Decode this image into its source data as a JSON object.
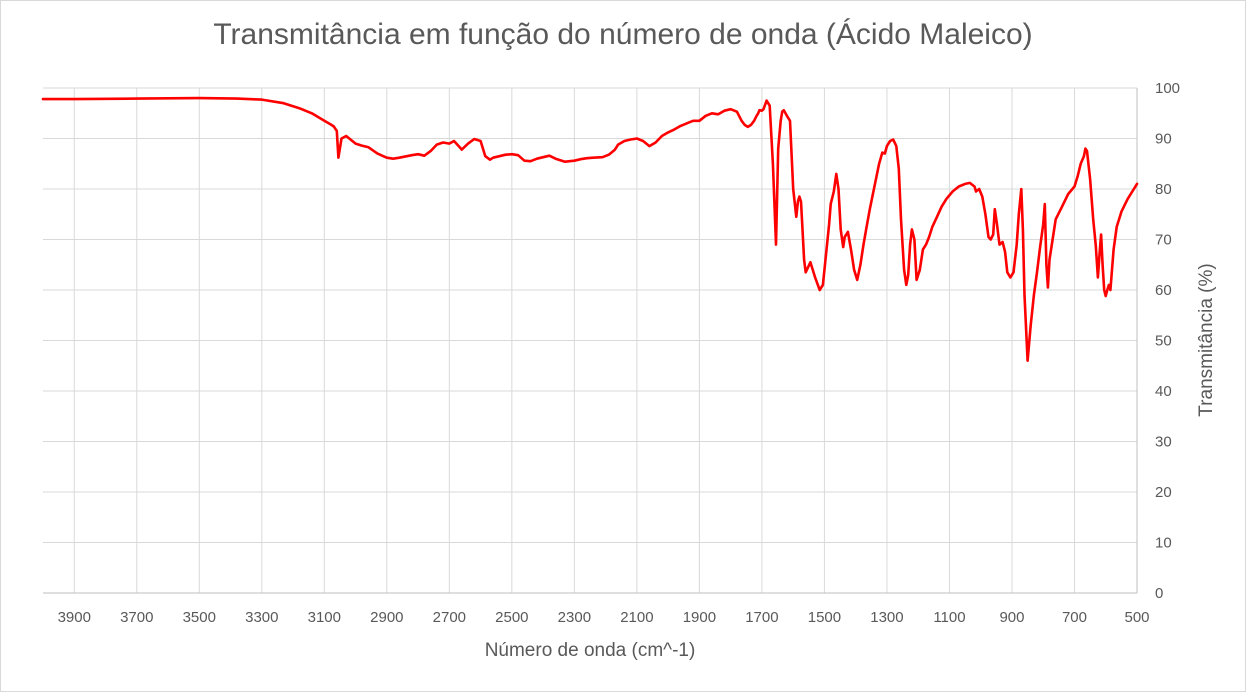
{
  "chart_data": {
    "type": "line",
    "title": "Transmitância em função do número de onda (Ácido Maleico)",
    "xlabel": "Número de onda (cm^-1)",
    "ylabel": "Transmitância (%)",
    "xlim": [
      4000,
      500
    ],
    "ylim": [
      0,
      100
    ],
    "x_reversed": true,
    "x_ticks": [
      3900,
      3700,
      3500,
      3300,
      3100,
      2900,
      2700,
      2500,
      2300,
      2100,
      1900,
      1700,
      1500,
      1300,
      1100,
      900,
      700,
      500
    ],
    "y_ticks": [
      0,
      10,
      20,
      30,
      40,
      50,
      60,
      70,
      80,
      90,
      100
    ],
    "y_axis_side": "right",
    "grid": true,
    "legend": "none",
    "series": [
      {
        "color": "#ff0000",
        "x": [
          4000,
          3900,
          3700,
          3500,
          3380,
          3300,
          3230,
          3180,
          3140,
          3100,
          3080,
          3070,
          3060,
          3055,
          3045,
          3030,
          3000,
          2980,
          2960,
          2930,
          2900,
          2880,
          2860,
          2820,
          2800,
          2780,
          2760,
          2740,
          2720,
          2700,
          2685,
          2670,
          2660,
          2640,
          2620,
          2600,
          2585,
          2570,
          2560,
          2540,
          2520,
          2500,
          2480,
          2460,
          2440,
          2420,
          2400,
          2380,
          2360,
          2330,
          2300,
          2280,
          2260,
          2240,
          2210,
          2190,
          2170,
          2160,
          2140,
          2120,
          2100,
          2080,
          2060,
          2040,
          2020,
          2000,
          1980,
          1960,
          1940,
          1920,
          1900,
          1880,
          1860,
          1840,
          1820,
          1800,
          1780,
          1765,
          1755,
          1745,
          1735,
          1725,
          1717,
          1712,
          1708,
          1700,
          1695,
          1685,
          1675,
          1665,
          1655,
          1648,
          1640,
          1635,
          1630,
          1620,
          1610,
          1600,
          1590,
          1585,
          1580,
          1575,
          1570,
          1565,
          1560,
          1545,
          1530,
          1515,
          1505,
          1495,
          1485,
          1480,
          1470,
          1462,
          1455,
          1448,
          1440,
          1435,
          1425,
          1415,
          1405,
          1395,
          1385,
          1375,
          1365,
          1355,
          1345,
          1335,
          1325,
          1315,
          1307,
          1300,
          1290,
          1280,
          1270,
          1262,
          1255,
          1245,
          1238,
          1232,
          1226,
          1220,
          1212,
          1205,
          1195,
          1185,
          1175,
          1165,
          1155,
          1140,
          1125,
          1110,
          1090,
          1070,
          1050,
          1035,
          1020,
          1015,
          1005,
          995,
          985,
          975,
          968,
          960,
          955,
          948,
          940,
          930,
          922,
          915,
          905,
          895,
          885,
          878,
          870,
          865,
          860,
          850,
          840,
          830,
          820,
          810,
          800,
          795,
          790,
          785,
          780,
          770,
          760,
          740,
          720,
          700,
          690,
          680,
          670,
          665,
          660,
          650,
          640,
          632,
          625,
          620,
          615,
          610,
          605,
          600,
          595,
          590,
          585,
          575,
          565,
          550,
          530,
          515,
          500
        ],
        "y": [
          97.8,
          97.8,
          97.9,
          98.0,
          97.9,
          97.7,
          97.0,
          96.0,
          95.0,
          93.5,
          92.8,
          92.4,
          91.5,
          86.2,
          90.0,
          90.5,
          89.0,
          88.6,
          88.3,
          87.0,
          86.2,
          86.0,
          86.2,
          86.7,
          86.9,
          86.6,
          87.5,
          88.8,
          89.2,
          89.0,
          89.5,
          88.5,
          87.8,
          89.0,
          89.9,
          89.5,
          86.5,
          85.8,
          86.2,
          86.5,
          86.8,
          86.9,
          86.7,
          85.6,
          85.5,
          86.0,
          86.3,
          86.6,
          86.0,
          85.4,
          85.6,
          85.9,
          86.1,
          86.2,
          86.3,
          86.8,
          87.8,
          88.8,
          89.5,
          89.8,
          90.0,
          89.5,
          88.5,
          89.2,
          90.5,
          91.2,
          91.8,
          92.5,
          93.0,
          93.5,
          93.5,
          94.5,
          95.0,
          94.8,
          95.5,
          95.8,
          95.3,
          93.5,
          92.7,
          92.3,
          92.7,
          93.5,
          94.5,
          95.0,
          95.6,
          95.5,
          95.8,
          97.5,
          96.5,
          85.0,
          69.0,
          88.0,
          93.5,
          95.3,
          95.6,
          94.5,
          93.5,
          80.0,
          74.5,
          77.5,
          78.5,
          77.5,
          72.0,
          66.0,
          63.5,
          65.5,
          62.5,
          60.0,
          61.0,
          67.0,
          73.0,
          77.0,
          79.5,
          83.0,
          80.0,
          72.0,
          68.5,
          70.5,
          71.5,
          68.0,
          64.0,
          62.0,
          65.0,
          69.0,
          72.5,
          76.0,
          79.0,
          82.0,
          85.0,
          87.2,
          87.0,
          88.5,
          89.5,
          89.8,
          88.5,
          84.0,
          74.0,
          64.0,
          61.0,
          63.0,
          69.0,
          72.0,
          70.0,
          62.0,
          64.0,
          68.0,
          69.0,
          70.5,
          72.5,
          74.5,
          76.5,
          78.0,
          79.5,
          80.5,
          81.0,
          81.2,
          80.5,
          79.5,
          80.0,
          78.5,
          75.0,
          70.5,
          70.0,
          71.0,
          76.0,
          73.0,
          69.0,
          69.5,
          67.5,
          63.5,
          62.5,
          63.5,
          69.0,
          75.0,
          80.0,
          72.0,
          59.0,
          46.0,
          53.0,
          59.0,
          63.5,
          68.5,
          73.0,
          77.0,
          65.0,
          60.5,
          66.0,
          70.0,
          74.0,
          76.5,
          79.0,
          80.5,
          82.5,
          85.0,
          86.5,
          88.0,
          87.5,
          82.0,
          74.0,
          69.0,
          62.5,
          67.0,
          71.0,
          65.0,
          60.0,
          58.8,
          60.0,
          61.0,
          60.0,
          68.0,
          72.5,
          75.5,
          78.0,
          79.5,
          81.0
        ]
      }
    ]
  }
}
